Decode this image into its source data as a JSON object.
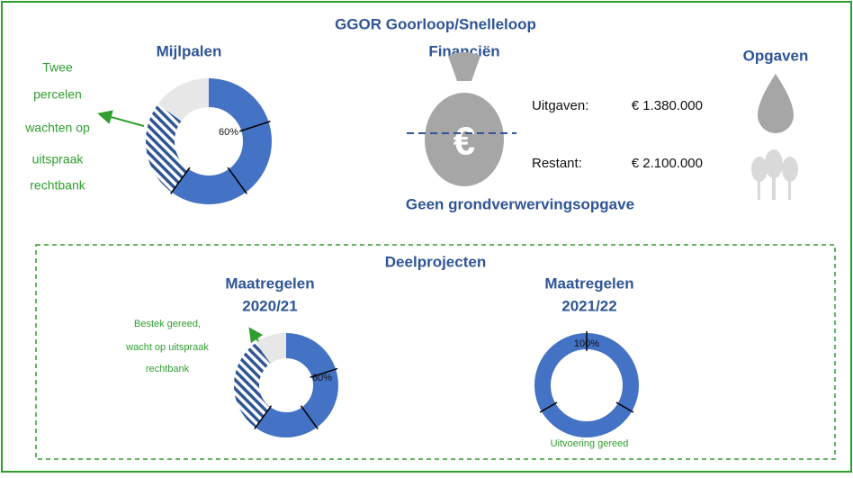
{
  "title": "GGOR Goorloop/Snelleloop",
  "milestones": {
    "title": "Mijlpalen",
    "values": [
      60,
      25,
      15
    ],
    "value_label": "60%",
    "annotation": [
      "Twee",
      "percelen",
      "wachten op",
      "uitspraak",
      "rechtbank"
    ]
  },
  "finance": {
    "title": "Financiën",
    "rows": [
      {
        "label": "Uitgaven:",
        "amount": "€ 1.380.000"
      },
      {
        "label": "Restant:",
        "amount": "€ 2.100.000"
      }
    ],
    "note": "Geen grondverwervingsopgave"
  },
  "tasks": {
    "title": "Opgaven"
  },
  "subprojects": {
    "title": "Deelprojecten",
    "projects": [
      {
        "title": [
          "Maatregelen",
          "2020/21"
        ],
        "values": [
          60,
          30,
          10
        ],
        "value_label": "60%",
        "annotation": [
          "Bestek gereed,",
          "wacht op uitspraak",
          "rechtbank"
        ]
      },
      {
        "title": [
          "Maatregelen",
          "2021/22"
        ],
        "values": [
          100
        ],
        "value_label": "100%",
        "annotation": [
          "Uitvoering gereed"
        ]
      }
    ]
  }
}
